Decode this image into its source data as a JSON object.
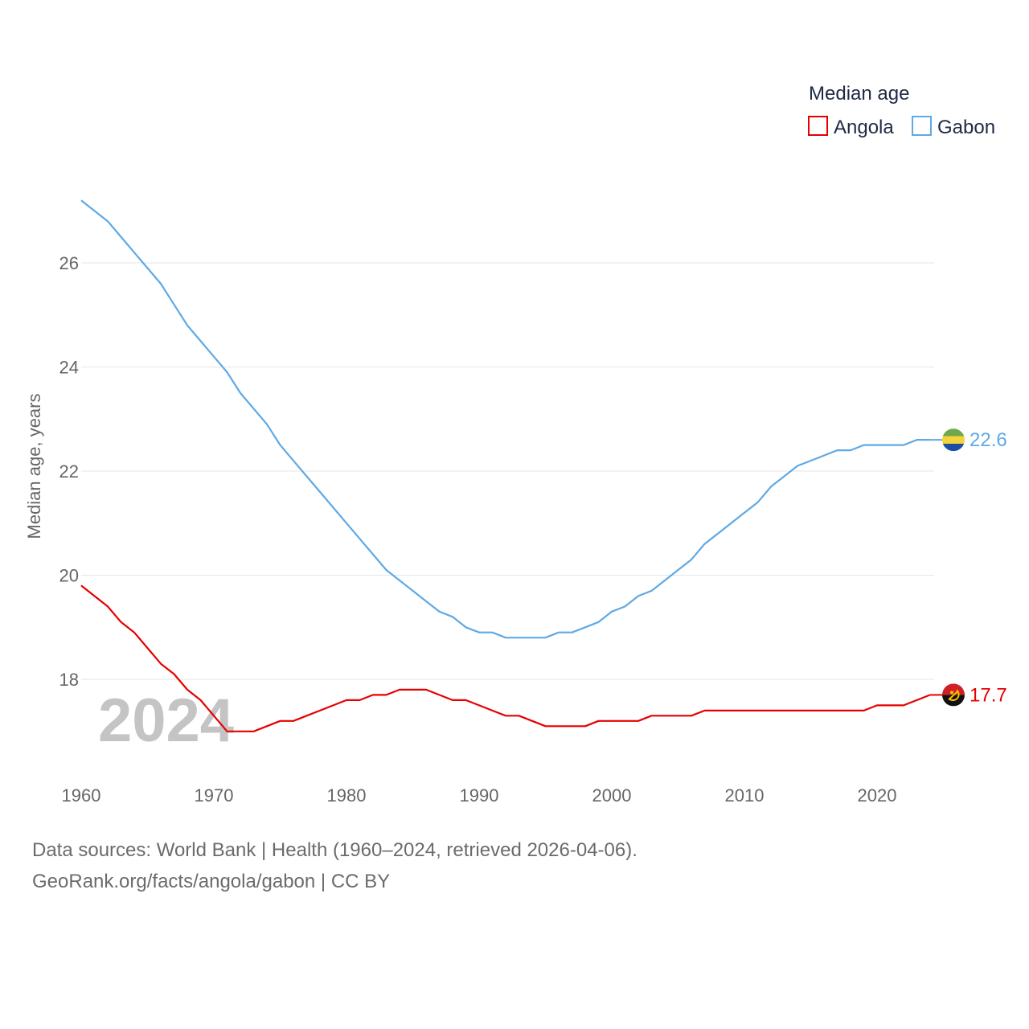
{
  "chart_data": {
    "type": "line",
    "legend_title": "Median age",
    "ylabel": "Median age, years",
    "xlabel": "",
    "xlim": [
      1960,
      2024
    ],
    "ylim": [
      16.2,
      27.2
    ],
    "yticks": [
      18,
      20,
      22,
      24,
      26
    ],
    "xticks": [
      1960,
      1970,
      1980,
      1990,
      2000,
      2010,
      2020
    ],
    "year_label": "2024",
    "legend_position": "top-right",
    "series": [
      {
        "name": "Angola",
        "color": "#e60000",
        "end_label": "17.7",
        "flag_icon": "angola-flag-icon",
        "x_start": 1960,
        "values": [
          19.8,
          19.6,
          19.4,
          19.1,
          18.9,
          18.6,
          18.3,
          18.1,
          17.8,
          17.6,
          17.3,
          17.0,
          17.0,
          17.0,
          17.1,
          17.2,
          17.2,
          17.3,
          17.4,
          17.5,
          17.6,
          17.6,
          17.7,
          17.7,
          17.8,
          17.8,
          17.8,
          17.7,
          17.6,
          17.6,
          17.5,
          17.4,
          17.3,
          17.3,
          17.2,
          17.1,
          17.1,
          17.1,
          17.1,
          17.2,
          17.2,
          17.2,
          17.2,
          17.3,
          17.3,
          17.3,
          17.3,
          17.4,
          17.4,
          17.4,
          17.4,
          17.4,
          17.4,
          17.4,
          17.4,
          17.4,
          17.4,
          17.4,
          17.4,
          17.4,
          17.5,
          17.5,
          17.5,
          17.6,
          17.7
        ]
      },
      {
        "name": "Gabon",
        "color": "#5ea9e6",
        "end_label": "22.6",
        "flag_icon": "gabon-flag-icon",
        "x_start": 1960,
        "values": [
          27.2,
          27.0,
          26.8,
          26.5,
          26.2,
          25.9,
          25.6,
          25.2,
          24.8,
          24.5,
          24.2,
          23.9,
          23.5,
          23.2,
          22.9,
          22.5,
          22.2,
          21.9,
          21.6,
          21.3,
          21.0,
          20.7,
          20.4,
          20.1,
          19.9,
          19.7,
          19.5,
          19.3,
          19.2,
          19.0,
          18.9,
          18.9,
          18.8,
          18.8,
          18.8,
          18.8,
          18.9,
          18.9,
          19.0,
          19.1,
          19.3,
          19.4,
          19.6,
          19.7,
          19.9,
          20.1,
          20.3,
          20.6,
          20.8,
          21.0,
          21.2,
          21.4,
          21.7,
          21.9,
          22.1,
          22.2,
          22.3,
          22.4,
          22.4,
          22.5,
          22.5,
          22.5,
          22.5,
          22.6,
          22.6
        ]
      }
    ]
  },
  "footer": {
    "source_line": "Data sources: World Bank | Health (1960–2024, retrieved 2026-04-06).",
    "credit_line": "GeoRank.org/facts/angola/gabon | CC BY"
  }
}
